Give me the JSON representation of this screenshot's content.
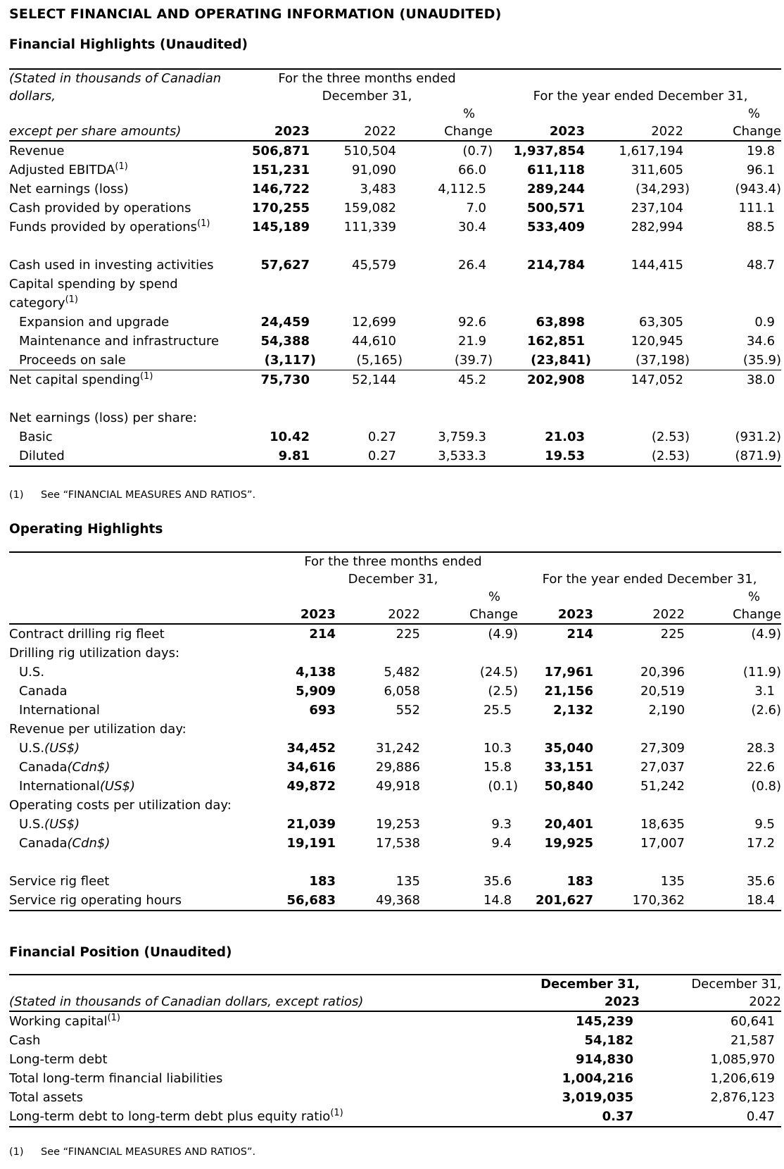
{
  "title": "SELECT FINANCIAL AND OPERATING INFORMATION (UNAUDITED)",
  "financial_highlights": {
    "heading": "Financial Highlights (Unaudited)",
    "header": {
      "label_lines": [
        "(Stated in thousands of Canadian",
        "dollars,",
        "except per share amounts)"
      ],
      "three_months_line1": "For the three months ended",
      "three_months_line2": "December 31,",
      "year_ended": "For the year ended December 31,",
      "pct_top": "%",
      "columns": [
        "2023",
        "2022",
        "Change",
        "2023",
        "2022",
        "Change"
      ]
    },
    "rows": [
      {
        "label": "Revenue",
        "values": [
          "506,871",
          "510,504",
          "(0.7)",
          "1,937,854",
          "1,617,194",
          "19.8"
        ]
      },
      {
        "label": "Adjusted EBITDA",
        "note": "(1)",
        "values": [
          "151,231",
          "91,090",
          "66.0",
          "611,118",
          "311,605",
          "96.1"
        ]
      },
      {
        "label": "Net earnings (loss)",
        "values": [
          "146,722",
          "3,483",
          "4,112.5",
          "289,244",
          "(34,293)",
          "(943.4)"
        ]
      },
      {
        "label": "Cash provided by operations",
        "values": [
          "170,255",
          "159,082",
          "7.0",
          "500,571",
          "237,104",
          "111.1"
        ]
      },
      {
        "label": "Funds provided by operations",
        "note": "(1)",
        "values": [
          "145,189",
          "111,339",
          "30.4",
          "533,409",
          "282,994",
          "88.5"
        ]
      },
      {
        "spacer": true
      },
      {
        "label": "Cash used in investing activities",
        "values": [
          "57,627",
          "45,579",
          "26.4",
          "214,784",
          "144,415",
          "48.7"
        ]
      },
      {
        "label": "Capital spending by spend",
        "values": []
      },
      {
        "label": "category",
        "note": "(1)",
        "values": []
      },
      {
        "label": "Expansion and upgrade",
        "indent": true,
        "values": [
          "24,459",
          "12,699",
          "92.6",
          "63,898",
          "63,305",
          "0.9"
        ]
      },
      {
        "label": "Maintenance and infrastructure",
        "indent": true,
        "values": [
          "54,388",
          "44,610",
          "21.9",
          "162,851",
          "120,945",
          "34.6"
        ]
      },
      {
        "label": "Proceeds on sale",
        "indent": true,
        "values": [
          "(3,117)",
          "(5,165)",
          "(39.7)",
          "(23,841)",
          "(37,198)",
          "(35.9)"
        ]
      },
      {
        "label": "Net capital spending",
        "note": "(1)",
        "sum": true,
        "values": [
          "75,730",
          "52,144",
          "45.2",
          "202,908",
          "147,052",
          "38.0"
        ]
      },
      {
        "spacer": true
      },
      {
        "label": "Net earnings (loss) per share:",
        "values": []
      },
      {
        "label": "Basic",
        "indent": true,
        "values": [
          "10.42",
          "0.27",
          "3,759.3",
          "21.03",
          "(2.53)",
          "(931.2)"
        ]
      },
      {
        "label": "Diluted",
        "indent": true,
        "last": true,
        "values": [
          "9.81",
          "0.27",
          "3,533.3",
          "19.53",
          "(2.53)",
          "(871.9)"
        ]
      }
    ],
    "footnote_num": "(1)",
    "footnote_text": "See “FINANCIAL MEASURES AND RATIOS”."
  },
  "operating_highlights": {
    "heading": "Operating Highlights",
    "header": {
      "three_months_line1": "For the three months ended",
      "three_months_line2": "December 31,",
      "year_ended": "For the year ended December 31,",
      "pct_top": "%",
      "columns": [
        "2023",
        "2022",
        "Change",
        "2023",
        "2022",
        "Change"
      ]
    },
    "rows": [
      {
        "label": "Contract drilling rig fleet",
        "values": [
          "214",
          "225",
          "(4.9)",
          "214",
          "225",
          "(4.9)"
        ]
      },
      {
        "label": "Drilling rig utilization days:",
        "values": []
      },
      {
        "label": "U.S.",
        "indent": true,
        "values": [
          "4,138",
          "5,482",
          "(24.5)",
          "17,961",
          "20,396",
          "(11.9)"
        ]
      },
      {
        "label": "Canada",
        "indent": true,
        "values": [
          "5,909",
          "6,058",
          "(2.5)",
          "21,156",
          "20,519",
          "3.1"
        ]
      },
      {
        "label": "International",
        "indent": true,
        "values": [
          "693",
          "552",
          "25.5",
          "2,132",
          "2,190",
          "(2.6)"
        ]
      },
      {
        "label": "Revenue per utilization day:",
        "values": []
      },
      {
        "label": "U.S.",
        "unit": "(US$)",
        "indent": true,
        "values": [
          "34,452",
          "31,242",
          "10.3",
          "35,040",
          "27,309",
          "28.3"
        ]
      },
      {
        "label": "Canada",
        "unit": "(Cdn$)",
        "indent": true,
        "values": [
          "34,616",
          "29,886",
          "15.8",
          "33,151",
          "27,037",
          "22.6"
        ]
      },
      {
        "label": "International",
        "unit": "(US$)",
        "indent": true,
        "values": [
          "49,872",
          "49,918",
          "(0.1)",
          "50,840",
          "51,242",
          "(0.8)"
        ]
      },
      {
        "label": "Operating costs per utilization day:",
        "values": []
      },
      {
        "label": "U.S.",
        "unit": "(US$)",
        "indent": true,
        "values": [
          "21,039",
          "19,253",
          "9.3",
          "20,401",
          "18,635",
          "9.5"
        ]
      },
      {
        "label": "Canada",
        "unit": "(Cdn$)",
        "indent": true,
        "values": [
          "19,191",
          "17,538",
          "9.4",
          "19,925",
          "17,007",
          "17.2"
        ]
      },
      {
        "spacer": true
      },
      {
        "label": "Service rig fleet",
        "values": [
          "183",
          "135",
          "35.6",
          "183",
          "135",
          "35.6"
        ]
      },
      {
        "label": "Service rig operating hours",
        "last": true,
        "values": [
          "56,683",
          "49,368",
          "14.8",
          "201,627",
          "170,362",
          "18.4"
        ]
      }
    ]
  },
  "financial_position": {
    "heading": "Financial Position (Unaudited)",
    "header": {
      "label": "(Stated in thousands of Canadian dollars, except ratios)",
      "col1_line1": "December 31,",
      "col1_line2": "2023",
      "col2_line1": "December 31,",
      "col2_line2": "2022"
    },
    "rows": [
      {
        "label": "Working capital",
        "note": "(1)",
        "values": [
          "145,239",
          "60,641"
        ]
      },
      {
        "label": "Cash",
        "values": [
          "54,182",
          "21,587"
        ]
      },
      {
        "label": "Long-term debt",
        "values": [
          "914,830",
          "1,085,970"
        ]
      },
      {
        "label": "Total long-term financial liabilities",
        "values": [
          "1,004,216",
          "1,206,619"
        ]
      },
      {
        "label": "Total assets",
        "values": [
          "3,019,035",
          "2,876,123"
        ]
      },
      {
        "label": "Long-term debt to long-term debt plus equity ratio",
        "note": "(1)",
        "last": true,
        "values": [
          "0.37",
          "0.47"
        ]
      }
    ],
    "footnote_num": "(1)",
    "footnote_text": "See “FINANCIAL MEASURES AND RATIOS”."
  }
}
